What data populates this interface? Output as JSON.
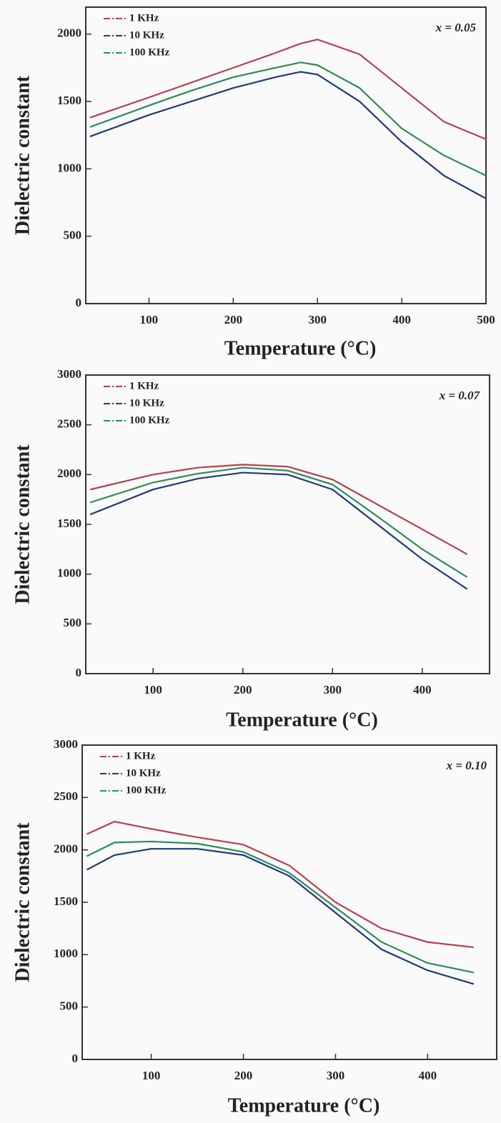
{
  "chart_data": [
    {
      "type": "line",
      "annotation": "x = 0.05",
      "xlabel": "Temperature (°C)",
      "ylabel": "Dielectric constant",
      "x": [
        30,
        100,
        150,
        200,
        250,
        280,
        300,
        350,
        400,
        450,
        500
      ],
      "series": [
        {
          "name": "1 KHz",
          "color": "#b5404f",
          "values": [
            1380,
            1530,
            1640,
            1750,
            1860,
            1930,
            1960,
            1850,
            1600,
            1350,
            1220
          ]
        },
        {
          "name": "10 KHz",
          "color": "#1f3a7a",
          "values": [
            1240,
            1400,
            1500,
            1600,
            1680,
            1720,
            1700,
            1500,
            1200,
            950,
            780
          ]
        },
        {
          "name": "100 KHz",
          "color": "#2e8b57",
          "values": [
            1310,
            1470,
            1580,
            1680,
            1750,
            1790,
            1770,
            1600,
            1300,
            1100,
            950
          ]
        }
      ],
      "xlim": [
        25,
        500
      ],
      "xticks": [
        100,
        200,
        300,
        400,
        500
      ],
      "ylim": [
        0,
        2200
      ],
      "yticks": [
        0,
        500,
        1000,
        1500,
        2000
      ],
      "legend": "upper left"
    },
    {
      "type": "line",
      "annotation": "x = 0.07",
      "xlabel": "Temperature (°C)",
      "ylabel": "Dielectric constant",
      "x": [
        30,
        100,
        150,
        200,
        250,
        300,
        350,
        400,
        450
      ],
      "series": [
        {
          "name": "1 KHz",
          "color": "#b5404f",
          "values": [
            1850,
            2000,
            2070,
            2100,
            2080,
            1950,
            1700,
            1450,
            1200
          ]
        },
        {
          "name": "10 KHz",
          "color": "#1f3a7a",
          "values": [
            1600,
            1850,
            1960,
            2020,
            2000,
            1850,
            1500,
            1150,
            850
          ]
        },
        {
          "name": "100 KHz",
          "color": "#2e8b57",
          "values": [
            1720,
            1920,
            2010,
            2070,
            2040,
            1900,
            1580,
            1250,
            970
          ]
        }
      ],
      "xlim": [
        25,
        475
      ],
      "xticks": [
        100,
        200,
        300,
        400
      ],
      "ylim": [
        0,
        3000
      ],
      "yticks": [
        0,
        500,
        1000,
        1500,
        2000,
        2500,
        3000
      ],
      "legend": "upper left"
    },
    {
      "type": "line",
      "annotation": "x = 0.10",
      "xlabel": "Temperature (°C)",
      "ylabel": "Dielectric constant",
      "x": [
        30,
        60,
        100,
        150,
        200,
        250,
        300,
        350,
        400,
        450
      ],
      "series": [
        {
          "name": "1 KHz",
          "color": "#b5404f",
          "values": [
            2150,
            2270,
            2200,
            2120,
            2050,
            1850,
            1500,
            1250,
            1120,
            1070
          ]
        },
        {
          "name": "10 KHz",
          "color": "#1f3a7a",
          "values": [
            1810,
            1950,
            2010,
            2010,
            1950,
            1750,
            1400,
            1050,
            850,
            720
          ]
        },
        {
          "name": "100 KHz",
          "color": "#2e8b57",
          "values": [
            1940,
            2070,
            2080,
            2060,
            1980,
            1780,
            1450,
            1120,
            920,
            830
          ]
        }
      ],
      "xlim": [
        25,
        475
      ],
      "xticks": [
        100,
        200,
        300,
        400
      ],
      "ylim": [
        0,
        3000
      ],
      "yticks": [
        0,
        500,
        1000,
        1500,
        2000,
        2500,
        3000
      ],
      "legend": "upper left"
    }
  ]
}
